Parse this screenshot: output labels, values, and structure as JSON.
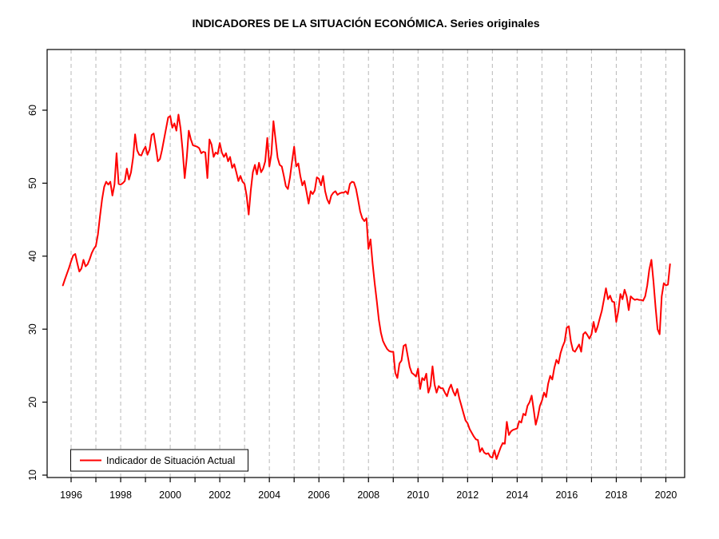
{
  "title": "INDICADORES DE LA SITUACIÓN ECONÓMICA. Series originales",
  "legend": {
    "label": "Indicador de Situación Actual"
  },
  "chart_data": {
    "type": "line",
    "title": "INDICADORES DE LA SITUACIÓN ECONÓMICA. Series originales",
    "xlabel": "",
    "ylabel": "",
    "x_unit": "year",
    "start": "1995-09",
    "frequency": "monthly",
    "x_tick_years": [
      1996,
      1997,
      1998,
      1999,
      2000,
      2001,
      2002,
      2003,
      2004,
      2005,
      2006,
      2007,
      2008,
      2009,
      2010,
      2011,
      2012,
      2013,
      2014,
      2015,
      2016,
      2017,
      2018,
      2019,
      2020
    ],
    "x_label_years": [
      1996,
      1998,
      2000,
      2002,
      2004,
      2006,
      2008,
      2010,
      2012,
      2014,
      2016,
      2018,
      2020
    ],
    "y_ticks": [
      10,
      20,
      30,
      40,
      50,
      60
    ],
    "xlim": [
      1995.0,
      2020.8
    ],
    "ylim": [
      9.7,
      68.3
    ],
    "grid": {
      "vertical": true,
      "style": "dashed",
      "color": "#BEBEBE"
    },
    "axis_color": "#000000",
    "background": "#FFFFFF",
    "legend_position": "bottom-left",
    "series": [
      {
        "name": "Indicador de Situación Actual",
        "color": "#FF0000",
        "values": [
          36.0,
          36.8,
          37.6,
          38.4,
          39.3,
          40.1,
          40.3,
          39.0,
          37.9,
          38.3,
          39.5,
          38.6,
          38.9,
          39.6,
          40.4,
          41.0,
          41.4,
          43.0,
          45.5,
          47.8,
          49.5,
          50.2,
          49.8,
          50.2,
          48.3,
          49.8,
          54.1,
          49.9,
          49.8,
          50.0,
          50.3,
          52.0,
          50.5,
          51.5,
          53.5,
          56.7,
          54.5,
          53.9,
          53.8,
          54.5,
          55.0,
          53.9,
          54.6,
          56.6,
          56.8,
          55.0,
          53.0,
          53.3,
          54.5,
          56.0,
          57.5,
          59.0,
          59.2,
          57.6,
          58.2,
          57.2,
          59.4,
          57.5,
          54.5,
          50.7,
          53.5,
          57.2,
          56.0,
          55.2,
          55.1,
          55.0,
          54.8,
          54.1,
          54.3,
          54.2,
          50.7,
          56.0,
          55.3,
          53.6,
          54.2,
          54.0,
          55.5,
          54.2,
          53.6,
          54.1,
          53.0,
          53.6,
          52.1,
          52.6,
          51.5,
          50.3,
          51.0,
          50.2,
          49.9,
          48.3,
          45.7,
          49.0,
          51.5,
          52.5,
          51.2,
          52.8,
          51.5,
          52.0,
          53.0,
          56.2,
          52.3,
          54.0,
          58.5,
          56.0,
          53.5,
          52.5,
          52.3,
          51.0,
          49.6,
          49.2,
          50.8,
          53.0,
          55.0,
          52.3,
          52.7,
          51.0,
          49.7,
          50.3,
          48.8,
          47.2,
          48.9,
          48.5,
          49.0,
          50.8,
          50.6,
          49.7,
          51.0,
          48.9,
          47.8,
          47.2,
          48.3,
          48.7,
          48.9,
          48.4,
          48.6,
          48.7,
          48.7,
          48.9,
          48.5,
          49.9,
          50.2,
          50.1,
          49.2,
          47.7,
          46.1,
          45.2,
          44.8,
          45.2,
          41.0,
          42.3,
          39.0,
          36.3,
          33.9,
          31.3,
          29.5,
          28.4,
          27.8,
          27.3,
          27.0,
          26.9,
          26.9,
          24.0,
          23.3,
          25.3,
          25.7,
          27.7,
          27.9,
          26.3,
          24.8,
          24.0,
          23.8,
          23.5,
          24.6,
          21.8,
          23.3,
          23.0,
          23.9,
          21.3,
          22.2,
          24.9,
          22.4,
          21.3,
          22.2,
          21.9,
          21.9,
          21.3,
          20.8,
          21.8,
          22.4,
          21.5,
          20.9,
          21.8,
          20.5,
          19.5,
          18.5,
          17.5,
          17.1,
          16.3,
          15.8,
          15.3,
          14.9,
          14.8,
          13.2,
          13.7,
          13.1,
          12.9,
          13.0,
          12.5,
          12.4,
          13.4,
          12.2,
          13.0,
          13.8,
          14.4,
          14.3,
          17.3,
          15.5,
          16.0,
          16.2,
          16.3,
          16.4,
          17.4,
          17.2,
          18.4,
          18.2,
          19.5,
          20.0,
          20.9,
          19.0,
          16.9,
          18.0,
          19.5,
          20.2,
          21.3,
          20.7,
          22.5,
          23.6,
          23.1,
          24.7,
          25.8,
          25.3,
          26.7,
          27.6,
          28.3,
          30.2,
          30.4,
          28.3,
          27.1,
          26.9,
          27.4,
          27.9,
          26.9,
          29.3,
          29.6,
          29.2,
          28.7,
          29.3,
          31.0,
          29.6,
          30.4,
          31.5,
          32.5,
          34.0,
          35.6,
          34.1,
          34.6,
          33.8,
          33.7,
          31.0,
          32.5,
          34.8,
          34.1,
          35.4,
          34.5,
          32.6,
          34.5,
          34.2,
          34.0,
          34.1,
          34.0,
          34.0,
          33.9,
          34.5,
          36.0,
          38.2,
          39.5,
          36.5,
          33.0,
          30.0,
          29.3,
          34.5,
          36.3,
          36.0,
          36.1,
          38.9
        ]
      }
    ]
  }
}
